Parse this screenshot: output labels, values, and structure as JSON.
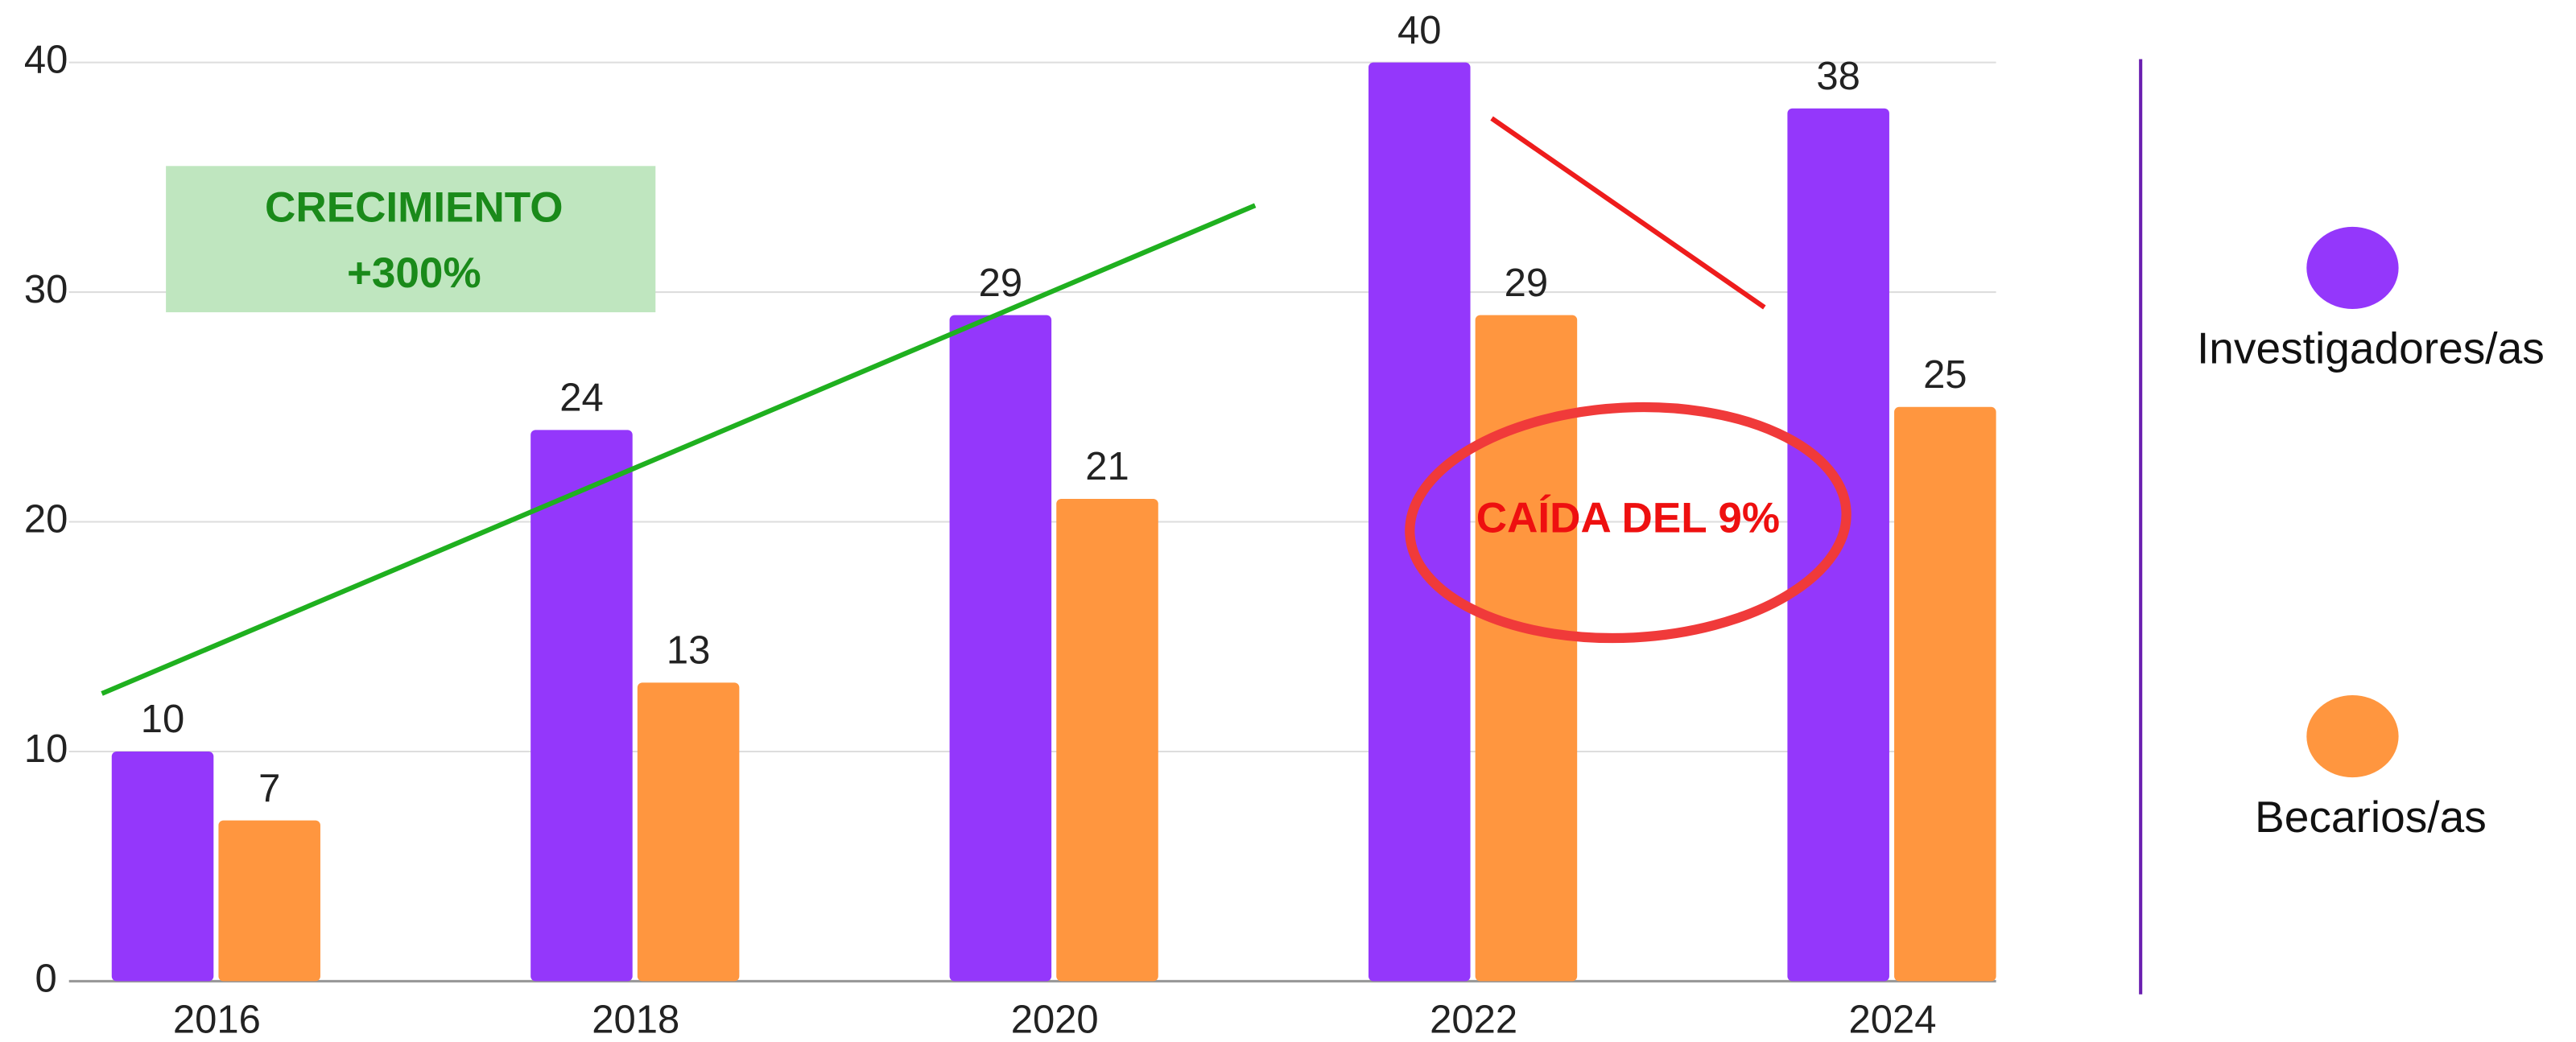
{
  "chart_data": {
    "type": "bar",
    "categories": [
      "2016",
      "2018",
      "2020",
      "2022",
      "2024"
    ],
    "series": [
      {
        "name": "Investigadores/as",
        "color": "#9437fb",
        "values": [
          10,
          24,
          29,
          40,
          38
        ]
      },
      {
        "name": "Becarios/as",
        "color": "#ff963f",
        "values": [
          7,
          13,
          21,
          29,
          25
        ]
      }
    ],
    "ylim": [
      0,
      40
    ],
    "yticks": [
      0,
      10,
      20,
      30,
      40
    ],
    "grid": true,
    "legend": "right",
    "annotations": [
      "CRECIMIENTO",
      "+300%",
      "CAÍDA DEL 9%"
    ]
  }
}
